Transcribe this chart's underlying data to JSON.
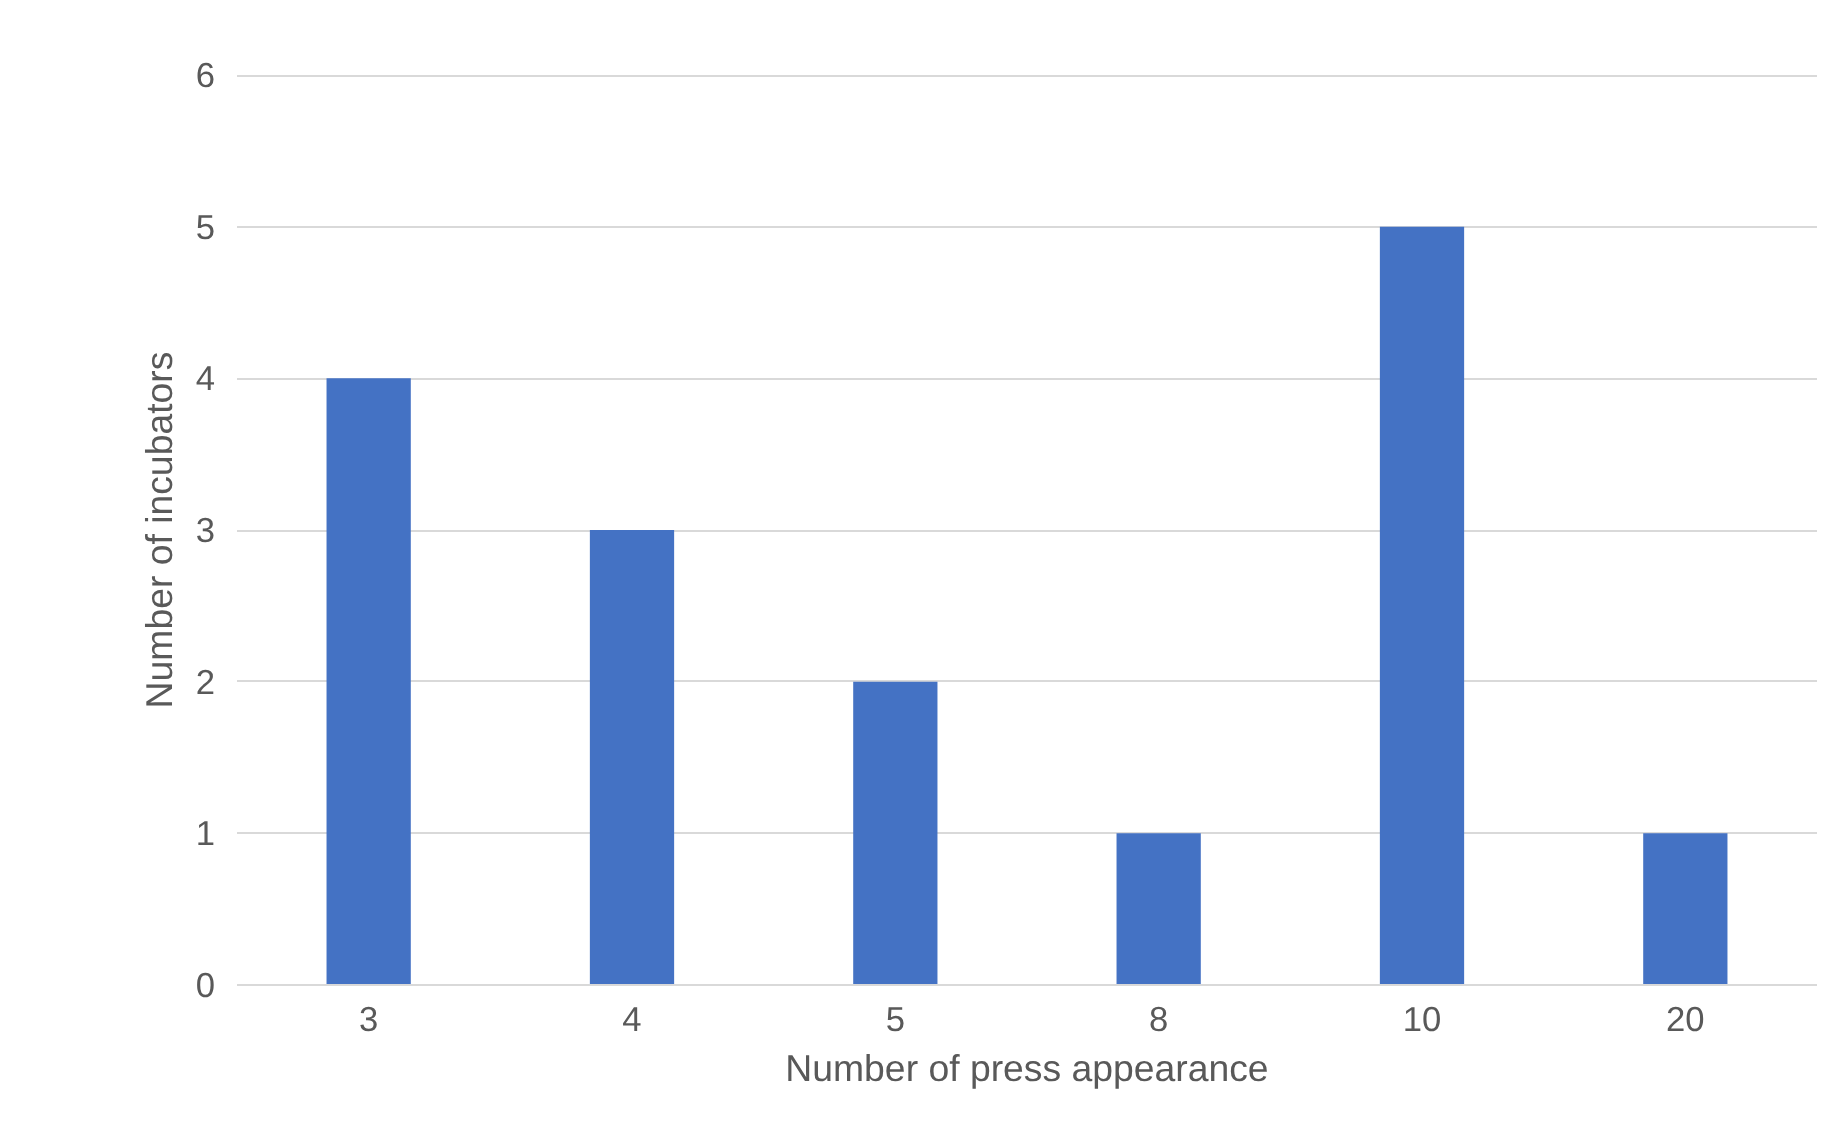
{
  "chart_data": {
    "type": "bar",
    "xlabel": "Number of press appearance",
    "ylabel": "Number of incubators",
    "categories": [
      "3",
      "4",
      "5",
      "8",
      "10",
      "20"
    ],
    "values": [
      4,
      3,
      2,
      1,
      5,
      1
    ],
    "color": "#4472c4",
    "ylim": [
      0,
      6
    ],
    "yticks": [
      0,
      1,
      2,
      3,
      4,
      5,
      6
    ],
    "grid": "y"
  }
}
